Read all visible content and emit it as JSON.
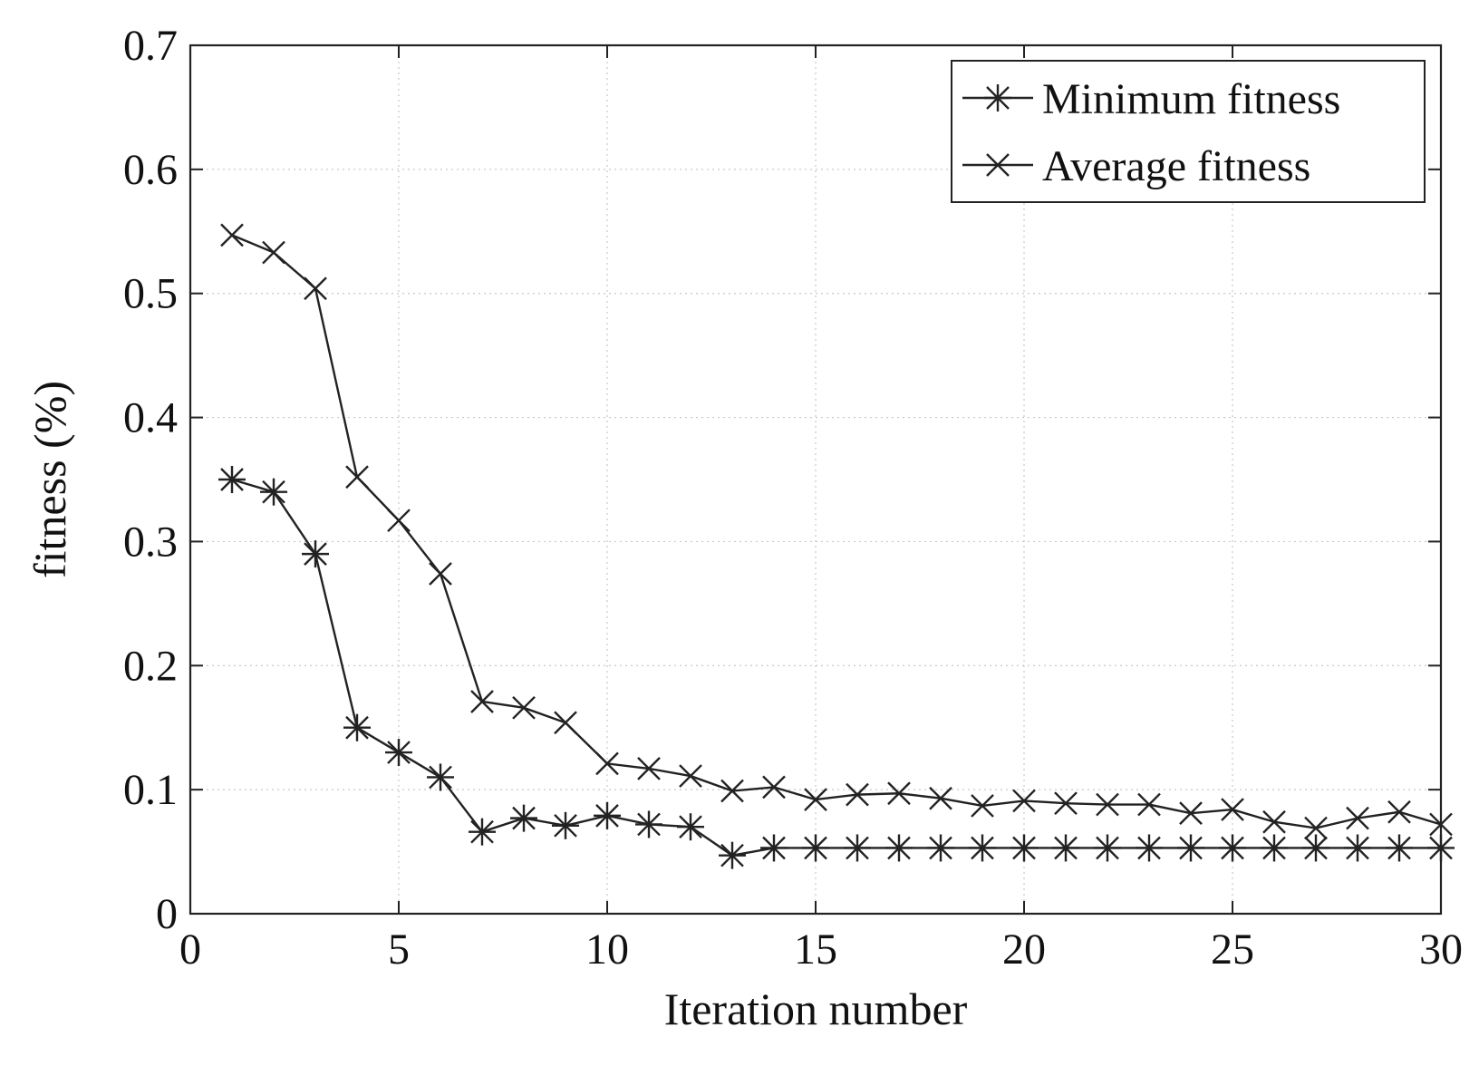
{
  "chart_data": {
    "type": "line",
    "title": "",
    "xlabel": "Iteration number",
    "ylabel": "fitness (%)",
    "xlim": [
      0,
      30
    ],
    "ylim": [
      0,
      0.7
    ],
    "xticks": [
      0,
      5,
      10,
      15,
      20,
      25,
      30
    ],
    "xtick_labels": [
      "0",
      "5",
      "10",
      "15",
      "20",
      "25",
      "30"
    ],
    "yticks": [
      0,
      0.1,
      0.2,
      0.3,
      0.4,
      0.5,
      0.6,
      0.7
    ],
    "ytick_labels": [
      "0",
      "0.1",
      "0.2",
      "0.3",
      "0.4",
      "0.5",
      "0.6",
      "0.7"
    ],
    "grid": true,
    "legend_position": "top-right",
    "x": [
      1,
      2,
      3,
      4,
      5,
      6,
      7,
      8,
      9,
      10,
      11,
      12,
      13,
      14,
      15,
      16,
      17,
      18,
      19,
      20,
      21,
      22,
      23,
      24,
      25,
      26,
      27,
      28,
      29,
      30
    ],
    "series": [
      {
        "name": "Minimum fitness",
        "marker": "asterisk",
        "values": [
          0.35,
          0.34,
          0.29,
          0.15,
          0.13,
          0.11,
          0.066,
          0.077,
          0.071,
          0.079,
          0.072,
          0.07,
          0.047,
          0.053,
          0.053,
          0.053,
          0.053,
          0.053,
          0.053,
          0.053,
          0.053,
          0.053,
          0.053,
          0.053,
          0.053,
          0.053,
          0.053,
          0.053,
          0.053,
          0.053
        ]
      },
      {
        "name": "Average fitness",
        "marker": "x",
        "values": [
          0.547,
          0.533,
          0.504,
          0.352,
          0.317,
          0.274,
          0.171,
          0.166,
          0.154,
          0.121,
          0.117,
          0.111,
          0.099,
          0.102,
          0.092,
          0.096,
          0.097,
          0.093,
          0.087,
          0.091,
          0.089,
          0.088,
          0.088,
          0.081,
          0.084,
          0.074,
          0.069,
          0.077,
          0.082,
          0.072
        ]
      }
    ]
  }
}
